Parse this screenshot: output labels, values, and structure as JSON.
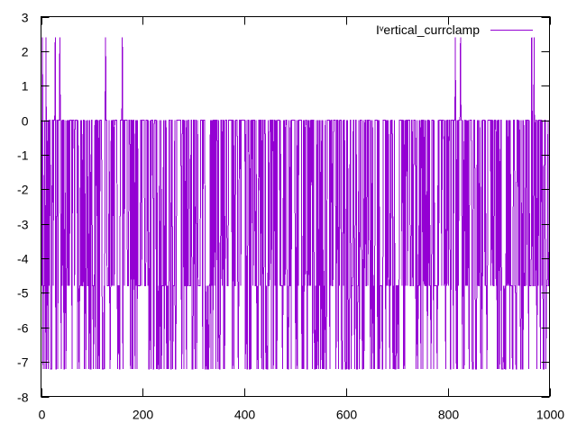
{
  "chart_data": {
    "type": "line",
    "title": "",
    "xlabel": "",
    "ylabel": "",
    "xlim": [
      0,
      1000
    ],
    "ylim": [
      -8,
      3
    ],
    "x_ticks": [
      0,
      200,
      400,
      600,
      800,
      1000
    ],
    "y_ticks": [
      3,
      2,
      1,
      0,
      -1,
      -2,
      -3,
      -4,
      -5,
      -6,
      -7,
      -8
    ],
    "grid": false,
    "legend_position": "top-right",
    "series": [
      {
        "name": "I$^V$ertical_currclamp",
        "name_display": "Iᵛertical_currclamp",
        "color": "#9400d3",
        "levels": [
          0,
          -4.8,
          -7.2
        ],
        "spike_level": 2.4,
        "spike_x": [
          3,
          10,
          28,
          37,
          127,
          160,
          815,
          825,
          965,
          970
        ],
        "x_start": 0,
        "x_end": 1000
      }
    ]
  }
}
